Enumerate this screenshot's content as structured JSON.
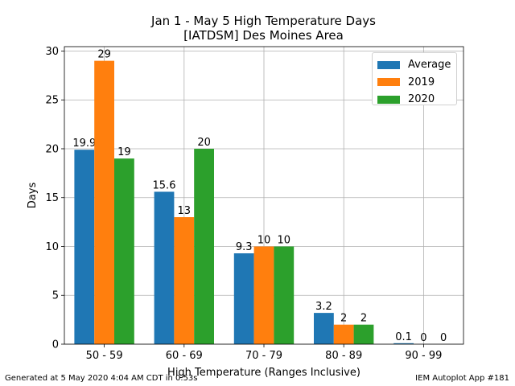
{
  "title_line1": "Jan 1 - May 5 High Temperature Days",
  "title_line2": "[IATDSM] Des Moines Area",
  "footer_left": "Generated at 5 May 2020 4:04 AM CDT in 0.53s",
  "footer_right": "IEM Autoplot App #181",
  "colors": {
    "Average": "#1f77b4",
    "2019": "#ff7f0e",
    "2020": "#2ca02c"
  },
  "chart_data": {
    "type": "bar",
    "title": "Jan 1 - May 5 High Temperature Days\n[IATDSM] Des Moines Area",
    "xlabel": "High Temperature (Ranges Inclusive)",
    "ylabel": "Days",
    "categories": [
      "50 - 59",
      "60 - 69",
      "70 - 79",
      "80 - 89",
      "90 - 99"
    ],
    "series": [
      {
        "name": "Average",
        "values": [
          19.9,
          15.6,
          9.3,
          3.2,
          0.1
        ],
        "labels": [
          "19.9",
          "15.6",
          "9.3",
          "3.2",
          "0.1"
        ]
      },
      {
        "name": "2019",
        "values": [
          29,
          13,
          10,
          2,
          0
        ],
        "labels": [
          "29",
          "13",
          "10",
          "2",
          "0"
        ]
      },
      {
        "name": "2020",
        "values": [
          19,
          20,
          10,
          2,
          0
        ],
        "labels": [
          "19",
          "20",
          "10",
          "2",
          "0"
        ]
      }
    ],
    "ylim": [
      0,
      30.45
    ],
    "yticks": [
      0,
      5,
      10,
      15,
      20,
      25,
      30
    ],
    "grid": true,
    "legend": "top-right"
  }
}
